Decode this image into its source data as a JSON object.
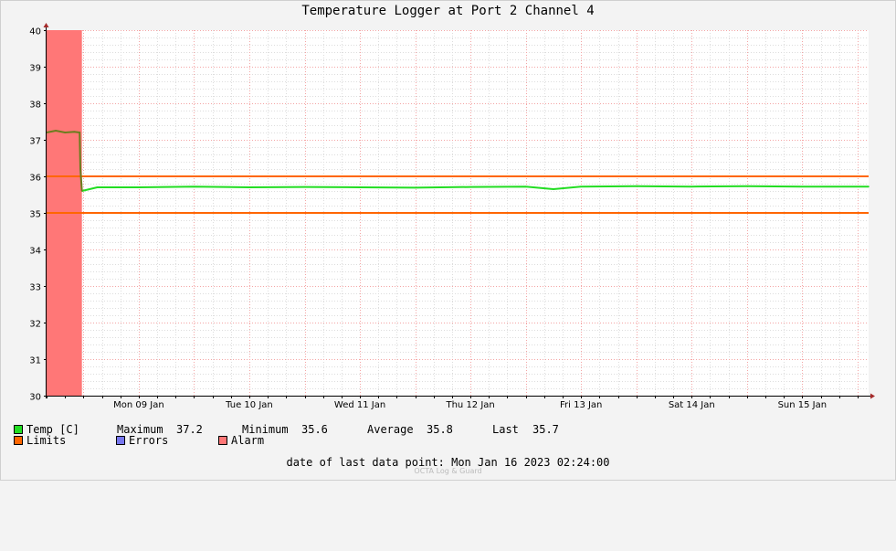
{
  "chart_data": {
    "type": "line",
    "title": "Temperature Logger at Port 2 Channel 4",
    "ylim": [
      30,
      40
    ],
    "yticks": [
      30,
      31,
      32,
      33,
      34,
      35,
      36,
      37,
      38,
      39,
      40
    ],
    "xlim": [
      "2023-01-08 16:00",
      "2023-01-16 02:24"
    ],
    "xticks": [
      {
        "label": "Mon 09 Jan",
        "at": "2023-01-09 00:00"
      },
      {
        "label": "Tue 10 Jan",
        "at": "2023-01-10 00:00"
      },
      {
        "label": "Wed 11 Jan",
        "at": "2023-01-11 00:00"
      },
      {
        "label": "Thu 12 Jan",
        "at": "2023-01-12 00:00"
      },
      {
        "label": "Fri 13 Jan",
        "at": "2023-01-13 00:00"
      },
      {
        "label": "Sat 14 Jan",
        "at": "2023-01-14 00:00"
      },
      {
        "label": "Sun 15 Jan",
        "at": "2023-01-15 00:00"
      }
    ],
    "series": [
      {
        "name": "Temp [C]",
        "color": "#22dd22",
        "alarm_color": "#6b7d1e",
        "x": [
          "2023-01-08 16:00",
          "2023-01-08 18:00",
          "2023-01-08 20:00",
          "2023-01-08 22:00",
          "2023-01-08 23:10",
          "2023-01-08 23:20",
          "2023-01-08 23:40",
          "2023-01-09 03:00",
          "2023-01-09 12:00",
          "2023-01-10 00:00",
          "2023-01-10 12:00",
          "2023-01-11 00:00",
          "2023-01-11 12:00",
          "2023-01-12 00:00",
          "2023-01-12 12:00",
          "2023-01-13 00:00",
          "2023-01-13 06:00",
          "2023-01-13 12:00",
          "2023-01-14 00:00",
          "2023-01-14 12:00",
          "2023-01-15 00:00",
          "2023-01-15 12:00",
          "2023-01-16 02:24"
        ],
        "y": [
          37.2,
          37.25,
          37.2,
          37.22,
          37.2,
          36.2,
          35.6,
          35.7,
          35.7,
          35.72,
          35.7,
          35.71,
          35.7,
          35.69,
          35.71,
          35.72,
          35.65,
          35.72,
          35.73,
          35.72,
          35.73,
          35.72,
          35.72
        ]
      }
    ],
    "limits": {
      "name": "Limits",
      "color": "#ff6600",
      "values": [
        35,
        36
      ]
    },
    "errors": {
      "name": "Errors",
      "color": "#7777ee"
    },
    "alarm": {
      "name": "Alarm",
      "color": "#ff7777",
      "from": "2023-01-08 16:00",
      "to": "2023-01-08 23:40"
    },
    "stats": {
      "max_label": "Maximum",
      "max": "37.2",
      "min_label": "Minimum",
      "min": "35.6",
      "avg_label": "Average",
      "avg": "35.8",
      "last_label": "Last",
      "last": "35.7"
    },
    "grid": true
  },
  "footer": {
    "label": "date of last data point:",
    "value": "Mon Jan 16 2023 02:24:00",
    "credit": "OCTA Log & Guard"
  }
}
